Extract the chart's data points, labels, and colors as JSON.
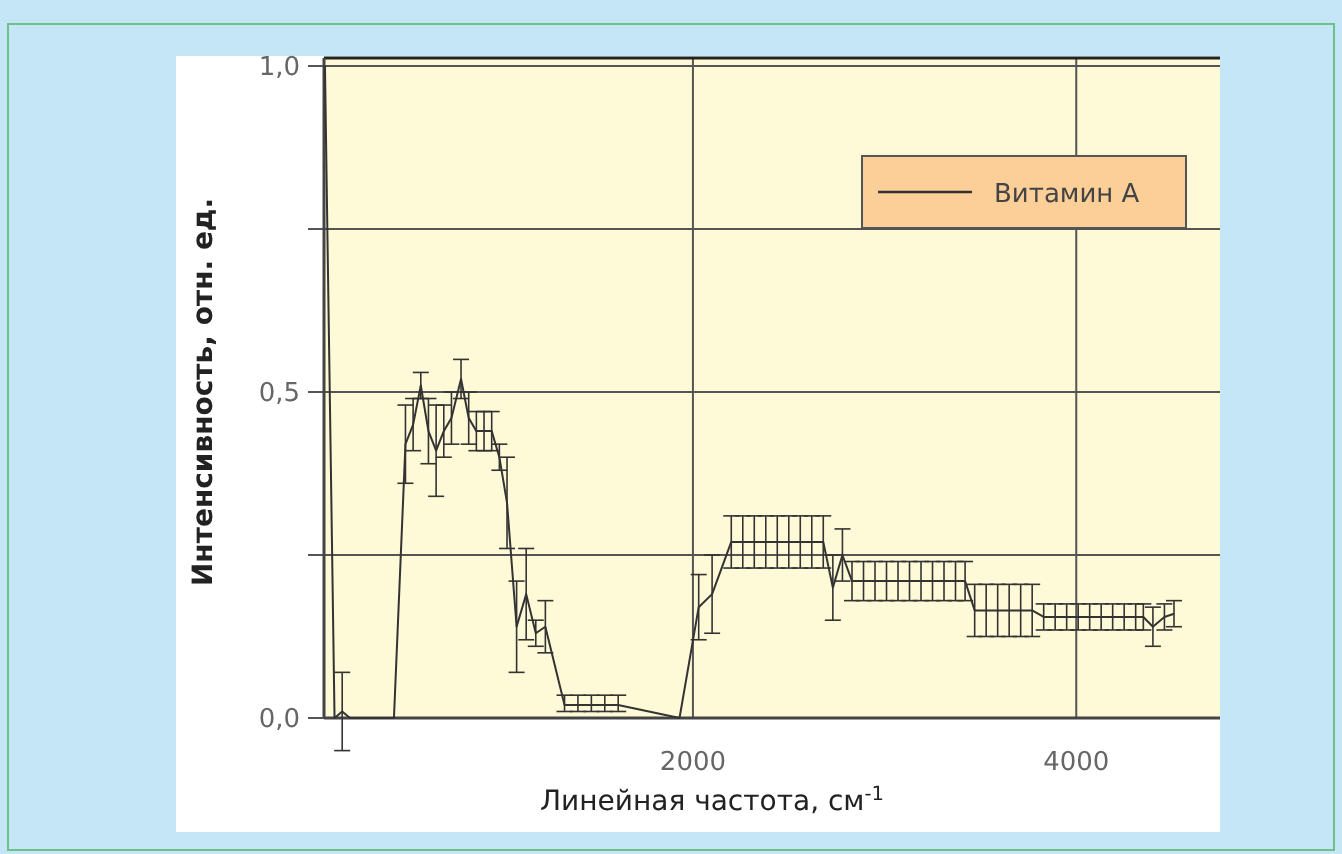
{
  "chart_data": {
    "type": "line",
    "xlabel": "Линейная частота, см$^{-1}$",
    "ylabel": "Интенсивность, отн. ед.",
    "xlim": [
      75,
      4750
    ],
    "ylim": [
      0,
      1
    ],
    "xticks": [
      2000,
      4000
    ],
    "yticks": [
      {
        "value": 0,
        "label": "0,0"
      },
      {
        "value": 0.25,
        "label": null
      },
      {
        "value": 0.5,
        "label": "0,5"
      },
      {
        "value": 0.75,
        "label": null
      },
      {
        "value": 1,
        "label": "1,0"
      }
    ],
    "grid": true,
    "legend": "top right",
    "marker": "none",
    "line_style": "solid",
    "series": [
      {
        "name": "Витамин А",
        "color": "#333333",
        "x": [
          80,
          130,
          170,
          210,
          440,
          500,
          540,
          580,
          620,
          660,
          700,
          740,
          790,
          830,
          870,
          910,
          950,
          990,
          1030,
          1080,
          1130,
          1180,
          1230,
          1330,
          1400,
          1470,
          1540,
          1610,
          1930,
          2030,
          2100,
          2200,
          2260,
          2320,
          2380,
          2440,
          2500,
          2560,
          2620,
          2680,
          2730,
          2780,
          2830,
          2890,
          2950,
          3010,
          3070,
          3130,
          3190,
          3250,
          3310,
          3370,
          3420,
          3470,
          3530,
          3590,
          3650,
          3710,
          3770,
          3830,
          3890,
          3950,
          4010,
          4070,
          4130,
          4190,
          4250,
          4310,
          4350,
          4400,
          4460,
          4510
        ],
        "values": [
          1.0,
          0,
          0.01,
          0,
          0,
          0.42,
          0.45,
          0.51,
          0.44,
          0.41,
          0.44,
          0.46,
          0.52,
          0.46,
          0.44,
          0.44,
          0.44,
          0.4,
          0.33,
          0.14,
          0.19,
          0.13,
          0.14,
          0.02,
          0.02,
          0.02,
          0.02,
          0.02,
          0,
          0.17,
          0.19,
          0.27,
          0.27,
          0.27,
          0.27,
          0.27,
          0.27,
          0.27,
          0.27,
          0.27,
          0.2,
          0.25,
          0.21,
          0.21,
          0.21,
          0.21,
          0.21,
          0.21,
          0.21,
          0.21,
          0.21,
          0.21,
          0.21,
          0.165,
          0.165,
          0.165,
          0.165,
          0.165,
          0.165,
          0.155,
          0.155,
          0.155,
          0.155,
          0.155,
          0.155,
          0.155,
          0.155,
          0.155,
          0.155,
          0.14,
          0.155,
          0.16
        ],
        "errors": [
          null,
          null,
          0.06,
          null,
          null,
          0.06,
          0.04,
          0.02,
          0.05,
          0.07,
          0.04,
          0.04,
          0.03,
          0.04,
          0.03,
          0.03,
          0.03,
          0.02,
          0.07,
          0.07,
          0.07,
          0.02,
          0.04,
          [
            0.01,
            0.035
          ],
          [
            0.01,
            0.035
          ],
          [
            0.01,
            0.035
          ],
          [
            0.01,
            0.035
          ],
          [
            0.01,
            0.035
          ],
          null,
          0.05,
          0.06,
          0.04,
          0.04,
          0.04,
          0.04,
          0.04,
          0.04,
          0.04,
          0.04,
          0.04,
          0.05,
          0.04,
          0.03,
          0.03,
          0.03,
          0.03,
          0.03,
          0.03,
          0.03,
          0.03,
          0.03,
          0.03,
          0.03,
          0.04,
          0.04,
          0.04,
          0.04,
          0.04,
          0.04,
          0.02,
          0.02,
          0.02,
          0.02,
          0.02,
          0.02,
          0.02,
          0.02,
          0.02,
          0.02,
          0.03,
          0.02,
          0.02
        ]
      }
    ]
  }
}
